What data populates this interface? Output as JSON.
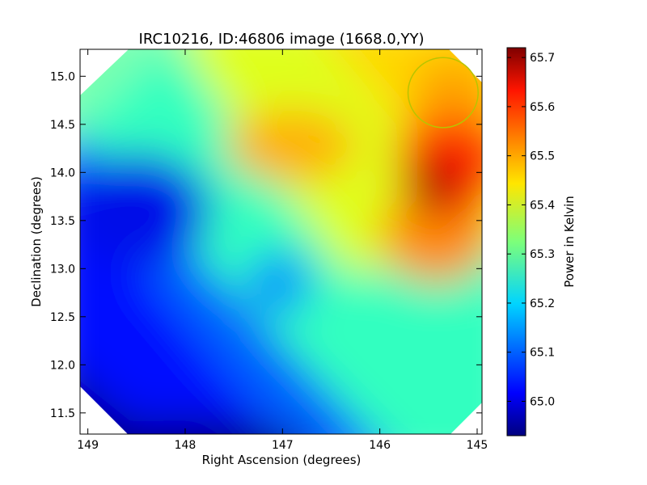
{
  "chart_data": {
    "type": "heatmap",
    "title": "IRC10216, ID:46806 image (1668.0,YY)",
    "xlabel": "Right Ascension (degrees)",
    "ylabel": "Declination (degrees)",
    "xlim": [
      149.08,
      144.95
    ],
    "ylim": [
      11.28,
      15.28
    ],
    "x_ticks": [
      149,
      148,
      147,
      146,
      145
    ],
    "y_ticks": [
      11.5,
      12.0,
      12.5,
      13.0,
      13.5,
      14.0,
      14.5,
      15.0
    ],
    "colorbar": {
      "label": "Power in Kelvin",
      "range": [
        64.93,
        65.72
      ],
      "ticks": [
        65.0,
        65.1,
        65.2,
        65.3,
        65.4,
        65.5,
        65.6,
        65.7
      ],
      "colormap": "jet"
    },
    "features": [
      {
        "kind": "maximum",
        "ra": 145.55,
        "dec": 13.83,
        "value": 65.72
      },
      {
        "kind": "local-high",
        "ra": 146.95,
        "dec": 14.25,
        "value": 65.47
      },
      {
        "kind": "minimum",
        "ra": 147.4,
        "dec": 11.35,
        "value": 64.94
      },
      {
        "kind": "low-region",
        "ra": 148.6,
        "dec": 13.6,
        "value": 65.03
      }
    ],
    "annotations": [
      {
        "kind": "circle",
        "ra": 145.35,
        "dec": 14.83,
        "radius_deg": 0.36,
        "color": "#b8c400"
      }
    ],
    "grid": false
  }
}
